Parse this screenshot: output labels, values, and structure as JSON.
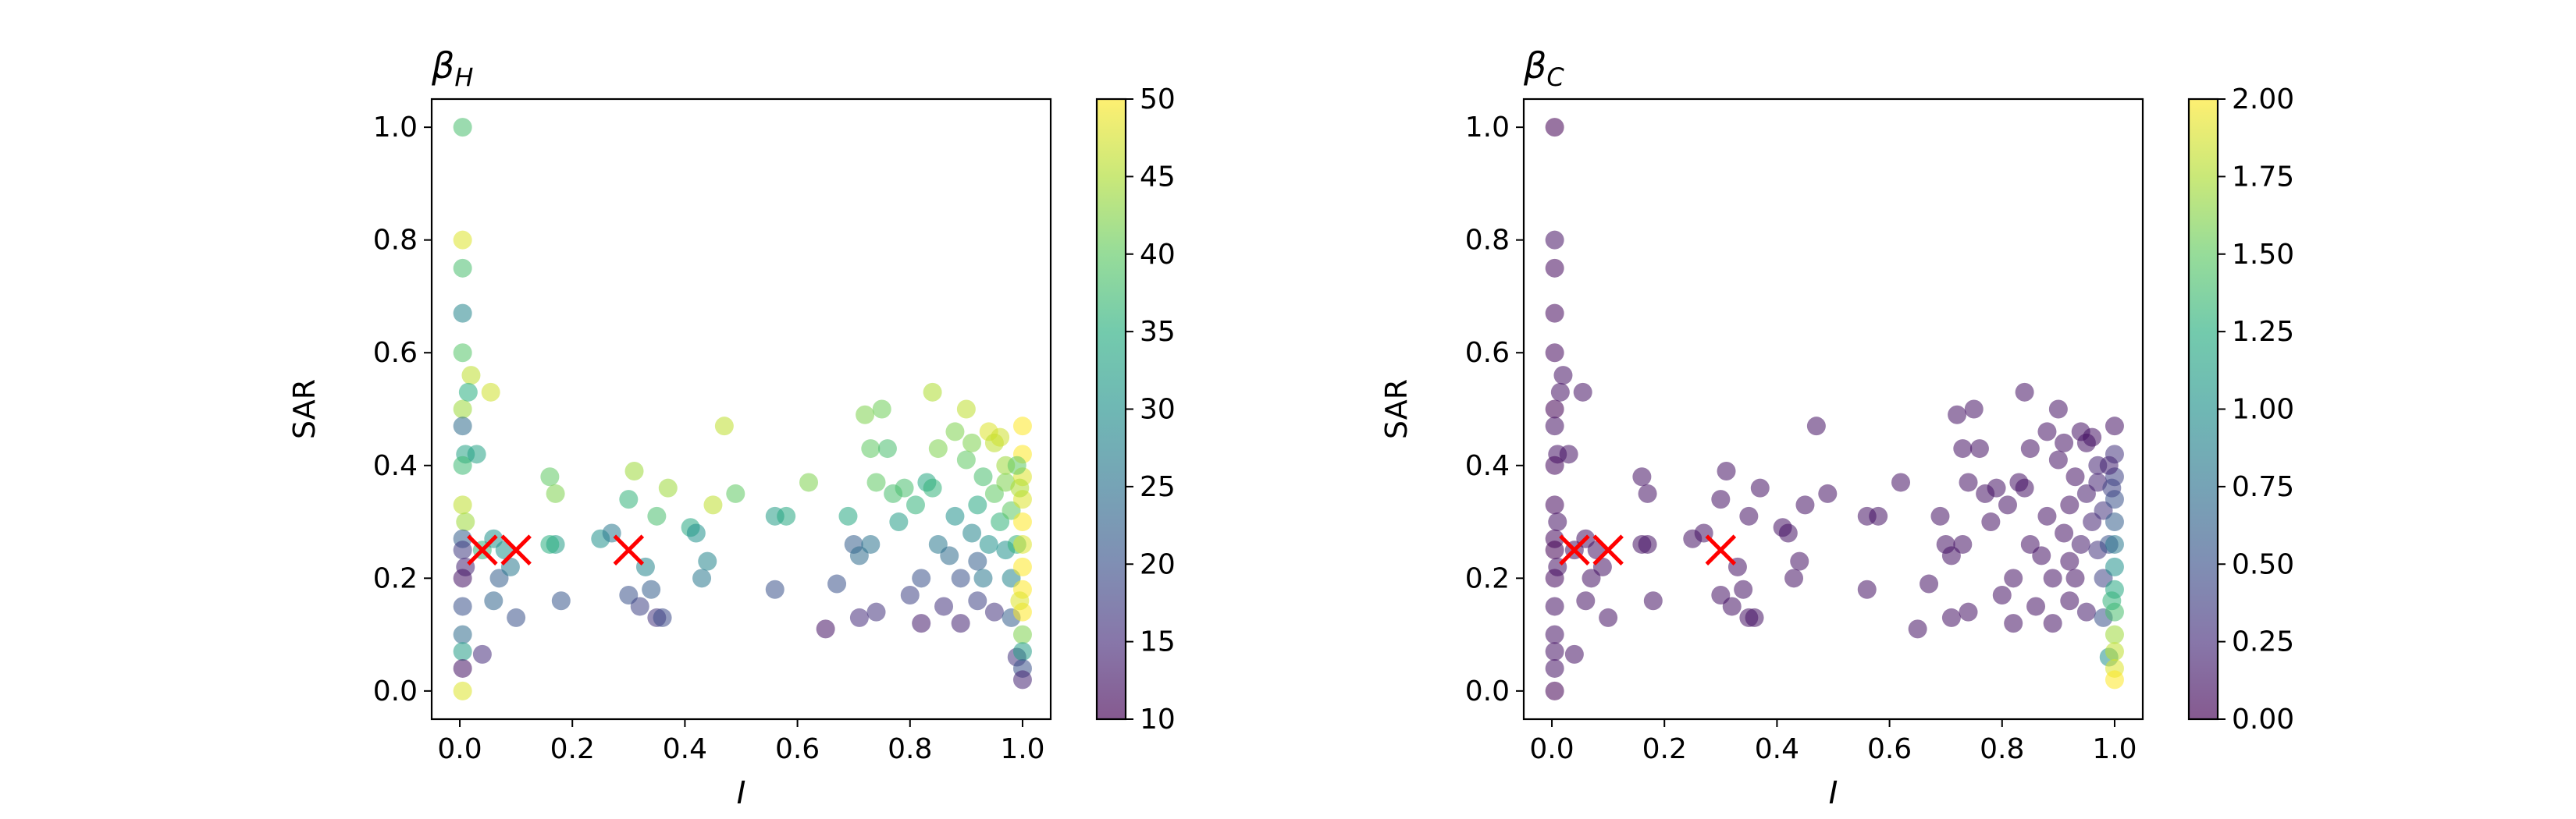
{
  "chart_data": [
    {
      "type": "scatter",
      "title": "β_H",
      "title_main": "β",
      "title_sub": "H",
      "xlabel": "I",
      "ylabel": "SAR",
      "xlim": [
        -0.05,
        1.05
      ],
      "ylim": [
        -0.05,
        1.05
      ],
      "xticks": [
        "0.0",
        "0.2",
        "0.4",
        "0.6",
        "0.8",
        "1.0"
      ],
      "yticks": [
        "0.0",
        "0.2",
        "0.4",
        "0.6",
        "0.8",
        "1.0"
      ],
      "colormap": "viridis",
      "colorbar": {
        "min": 10,
        "max": 50,
        "ticks": [
          "10",
          "15",
          "20",
          "25",
          "30",
          "35",
          "40",
          "45",
          "50"
        ]
      },
      "points": [
        [
          0.005,
          1.0,
          38
        ],
        [
          0.005,
          0.8,
          48
        ],
        [
          0.005,
          0.75,
          38
        ],
        [
          0.005,
          0.67,
          28
        ],
        [
          0.005,
          0.6,
          39
        ],
        [
          0.005,
          0.5,
          44
        ],
        [
          0.005,
          0.47,
          24
        ],
        [
          0.01,
          0.42,
          33
        ],
        [
          0.005,
          0.4,
          37
        ],
        [
          0.005,
          0.33,
          46
        ],
        [
          0.01,
          0.3,
          44
        ],
        [
          0.005,
          0.27,
          22
        ],
        [
          0.005,
          0.25,
          17
        ],
        [
          0.01,
          0.22,
          14
        ],
        [
          0.005,
          0.2,
          12
        ],
        [
          0.005,
          0.15,
          20
        ],
        [
          0.005,
          0.1,
          24
        ],
        [
          0.005,
          0.07,
          32
        ],
        [
          0.005,
          0.04,
          12
        ],
        [
          0.005,
          0.0,
          48
        ],
        [
          0.02,
          0.56,
          46
        ],
        [
          0.015,
          0.53,
          35
        ],
        [
          0.03,
          0.42,
          33
        ],
        [
          0.055,
          0.53,
          47
        ],
        [
          0.04,
          0.25,
          36
        ],
        [
          0.06,
          0.27,
          30
        ],
        [
          0.07,
          0.2,
          22
        ],
        [
          0.09,
          0.22,
          26
        ],
        [
          0.1,
          0.13,
          20
        ],
        [
          0.08,
          0.25,
          30
        ],
        [
          0.04,
          0.065,
          15
        ],
        [
          0.06,
          0.16,
          23
        ],
        [
          0.16,
          0.38,
          40
        ],
        [
          0.17,
          0.35,
          42
        ],
        [
          0.17,
          0.26,
          32
        ],
        [
          0.18,
          0.16,
          21
        ],
        [
          0.16,
          0.26,
          35
        ],
        [
          0.25,
          0.27,
          30
        ],
        [
          0.27,
          0.28,
          26
        ],
        [
          0.31,
          0.39,
          44
        ],
        [
          0.3,
          0.34,
          36
        ],
        [
          0.35,
          0.31,
          38
        ],
        [
          0.37,
          0.36,
          44
        ],
        [
          0.3,
          0.17,
          20
        ],
        [
          0.32,
          0.15,
          18
        ],
        [
          0.33,
          0.22,
          28
        ],
        [
          0.34,
          0.18,
          22
        ],
        [
          0.35,
          0.13,
          16
        ],
        [
          0.36,
          0.13,
          19
        ],
        [
          0.41,
          0.29,
          34
        ],
        [
          0.42,
          0.28,
          30
        ],
        [
          0.44,
          0.23,
          28
        ],
        [
          0.43,
          0.2,
          26
        ],
        [
          0.45,
          0.33,
          46
        ],
        [
          0.47,
          0.47,
          46
        ],
        [
          0.49,
          0.35,
          40
        ],
        [
          0.56,
          0.31,
          32
        ],
        [
          0.58,
          0.31,
          34
        ],
        [
          0.56,
          0.18,
          20
        ],
        [
          0.62,
          0.37,
          42
        ],
        [
          0.65,
          0.11,
          12
        ],
        [
          0.67,
          0.19,
          20
        ],
        [
          0.69,
          0.31,
          34
        ],
        [
          0.7,
          0.26,
          22
        ],
        [
          0.71,
          0.24,
          24
        ],
        [
          0.72,
          0.49,
          42
        ],
        [
          0.73,
          0.43,
          40
        ],
        [
          0.73,
          0.26,
          25
        ],
        [
          0.74,
          0.37,
          40
        ],
        [
          0.75,
          0.5,
          41
        ],
        [
          0.71,
          0.13,
          15
        ],
        [
          0.74,
          0.14,
          16
        ],
        [
          0.76,
          0.43,
          38
        ],
        [
          0.77,
          0.35,
          38
        ],
        [
          0.78,
          0.3,
          32
        ],
        [
          0.79,
          0.36,
          38
        ],
        [
          0.8,
          0.17,
          18
        ],
        [
          0.81,
          0.33,
          36
        ],
        [
          0.82,
          0.2,
          20
        ],
        [
          0.82,
          0.12,
          13
        ],
        [
          0.83,
          0.37,
          34
        ],
        [
          0.84,
          0.53,
          45
        ],
        [
          0.85,
          0.43,
          42
        ],
        [
          0.84,
          0.36,
          36
        ],
        [
          0.85,
          0.26,
          26
        ],
        [
          0.86,
          0.15,
          16
        ],
        [
          0.87,
          0.24,
          24
        ],
        [
          0.88,
          0.46,
          42
        ],
        [
          0.88,
          0.31,
          30
        ],
        [
          0.89,
          0.2,
          20
        ],
        [
          0.89,
          0.12,
          14
        ],
        [
          0.9,
          0.5,
          46
        ],
        [
          0.9,
          0.41,
          40
        ],
        [
          0.91,
          0.44,
          42
        ],
        [
          0.91,
          0.28,
          28
        ],
        [
          0.92,
          0.23,
          22
        ],
        [
          0.92,
          0.16,
          18
        ],
        [
          0.92,
          0.33,
          34
        ],
        [
          0.93,
          0.2,
          26
        ],
        [
          0.93,
          0.38,
          38
        ],
        [
          0.94,
          0.46,
          48
        ],
        [
          0.94,
          0.26,
          30
        ],
        [
          0.95,
          0.44,
          46
        ],
        [
          0.95,
          0.35,
          40
        ],
        [
          0.95,
          0.14,
          16
        ],
        [
          0.96,
          0.3,
          36
        ],
        [
          0.96,
          0.45,
          47
        ],
        [
          0.97,
          0.4,
          44
        ],
        [
          0.97,
          0.37,
          42
        ],
        [
          0.97,
          0.25,
          30
        ],
        [
          0.98,
          0.32,
          40
        ],
        [
          0.98,
          0.2,
          28
        ],
        [
          0.98,
          0.13,
          22
        ],
        [
          0.99,
          0.26,
          36
        ],
        [
          0.99,
          0.06,
          16
        ],
        [
          1.0,
          0.47,
          50
        ],
        [
          1.0,
          0.42,
          50
        ],
        [
          1.0,
          0.38,
          48
        ],
        [
          1.0,
          0.34,
          48
        ],
        [
          1.0,
          0.3,
          50
        ],
        [
          1.0,
          0.26,
          48
        ],
        [
          1.0,
          0.22,
          50
        ],
        [
          1.0,
          0.18,
          50
        ],
        [
          1.0,
          0.14,
          50
        ],
        [
          1.0,
          0.1,
          42
        ],
        [
          1.0,
          0.07,
          32
        ],
        [
          1.0,
          0.04,
          20
        ],
        [
          1.0,
          0.02,
          14
        ],
        [
          0.995,
          0.36,
          45
        ],
        [
          0.995,
          0.16,
          48
        ],
        [
          0.99,
          0.4,
          40
        ]
      ],
      "markers": [
        [
          0.04,
          0.25
        ],
        [
          0.1,
          0.25
        ],
        [
          0.3,
          0.25
        ]
      ]
    },
    {
      "type": "scatter",
      "title": "β_C",
      "title_main": "β",
      "title_sub": "C",
      "xlabel": "I",
      "ylabel": "SAR",
      "xlim": [
        -0.05,
        1.05
      ],
      "ylim": [
        -0.05,
        1.05
      ],
      "xticks": [
        "0.0",
        "0.2",
        "0.4",
        "0.6",
        "0.8",
        "1.0"
      ],
      "yticks": [
        "0.0",
        "0.2",
        "0.4",
        "0.6",
        "0.8",
        "1.0"
      ],
      "colormap": "viridis",
      "colorbar": {
        "min": 0,
        "max": 2,
        "ticks": [
          "0.00",
          "0.25",
          "0.50",
          "0.75",
          "1.00",
          "1.25",
          "1.50",
          "1.75",
          "2.00"
        ]
      },
      "points": [
        [
          0.005,
          1.0,
          0.0
        ],
        [
          0.005,
          0.8,
          0.1
        ],
        [
          0.005,
          0.75,
          0.05
        ],
        [
          0.005,
          0.67,
          0.05
        ],
        [
          0.005,
          0.6,
          0.05
        ],
        [
          0.005,
          0.5,
          0.0
        ],
        [
          0.005,
          0.47,
          0.1
        ],
        [
          0.01,
          0.42,
          0.1
        ],
        [
          0.005,
          0.4,
          0.05
        ],
        [
          0.005,
          0.33,
          0.05
        ],
        [
          0.01,
          0.3,
          0.1
        ],
        [
          0.005,
          0.27,
          0.05
        ],
        [
          0.005,
          0.25,
          0.0
        ],
        [
          0.01,
          0.22,
          0.1
        ],
        [
          0.005,
          0.2,
          0.05
        ],
        [
          0.005,
          0.15,
          0.1
        ],
        [
          0.005,
          0.1,
          0.1
        ],
        [
          0.005,
          0.07,
          0.1
        ],
        [
          0.005,
          0.04,
          0.1
        ],
        [
          0.005,
          0.0,
          0.0
        ],
        [
          0.02,
          0.56,
          0.1
        ],
        [
          0.015,
          0.53,
          0.1
        ],
        [
          0.03,
          0.42,
          0.1
        ],
        [
          0.055,
          0.53,
          0.1
        ],
        [
          0.04,
          0.25,
          0.1
        ],
        [
          0.06,
          0.27,
          0.1
        ],
        [
          0.07,
          0.2,
          0.1
        ],
        [
          0.09,
          0.22,
          0.1
        ],
        [
          0.1,
          0.13,
          0.1
        ],
        [
          0.08,
          0.25,
          0.1
        ],
        [
          0.04,
          0.065,
          0.1
        ],
        [
          0.06,
          0.16,
          0.1
        ],
        [
          0.16,
          0.38,
          0.1
        ],
        [
          0.17,
          0.35,
          0.1
        ],
        [
          0.17,
          0.26,
          0.1
        ],
        [
          0.18,
          0.16,
          0.1
        ],
        [
          0.16,
          0.26,
          0.1
        ],
        [
          0.25,
          0.27,
          0.1
        ],
        [
          0.27,
          0.28,
          0.1
        ],
        [
          0.31,
          0.39,
          0.1
        ],
        [
          0.3,
          0.34,
          0.1
        ],
        [
          0.35,
          0.31,
          0.1
        ],
        [
          0.37,
          0.36,
          0.1
        ],
        [
          0.3,
          0.17,
          0.1
        ],
        [
          0.32,
          0.15,
          0.1
        ],
        [
          0.33,
          0.22,
          0.1
        ],
        [
          0.34,
          0.18,
          0.1
        ],
        [
          0.35,
          0.13,
          0.1
        ],
        [
          0.36,
          0.13,
          0.1
        ],
        [
          0.41,
          0.29,
          0.1
        ],
        [
          0.42,
          0.28,
          0.1
        ],
        [
          0.44,
          0.23,
          0.1
        ],
        [
          0.43,
          0.2,
          0.1
        ],
        [
          0.45,
          0.33,
          0.1
        ],
        [
          0.47,
          0.47,
          0.1
        ],
        [
          0.49,
          0.35,
          0.1
        ],
        [
          0.56,
          0.31,
          0.1
        ],
        [
          0.58,
          0.31,
          0.1
        ],
        [
          0.56,
          0.18,
          0.1
        ],
        [
          0.62,
          0.37,
          0.1
        ],
        [
          0.65,
          0.11,
          0.1
        ],
        [
          0.67,
          0.19,
          0.1
        ],
        [
          0.69,
          0.31,
          0.1
        ],
        [
          0.7,
          0.26,
          0.1
        ],
        [
          0.71,
          0.24,
          0.1
        ],
        [
          0.72,
          0.49,
          0.1
        ],
        [
          0.73,
          0.43,
          0.1
        ],
        [
          0.73,
          0.26,
          0.1
        ],
        [
          0.74,
          0.37,
          0.1
        ],
        [
          0.75,
          0.5,
          0.1
        ],
        [
          0.71,
          0.13,
          0.1
        ],
        [
          0.74,
          0.14,
          0.1
        ],
        [
          0.76,
          0.43,
          0.1
        ],
        [
          0.77,
          0.35,
          0.1
        ],
        [
          0.78,
          0.3,
          0.1
        ],
        [
          0.79,
          0.36,
          0.1
        ],
        [
          0.8,
          0.17,
          0.1
        ],
        [
          0.81,
          0.33,
          0.1
        ],
        [
          0.82,
          0.2,
          0.1
        ],
        [
          0.82,
          0.12,
          0.1
        ],
        [
          0.83,
          0.37,
          0.1
        ],
        [
          0.84,
          0.53,
          0.1
        ],
        [
          0.85,
          0.43,
          0.1
        ],
        [
          0.84,
          0.36,
          0.1
        ],
        [
          0.85,
          0.26,
          0.1
        ],
        [
          0.86,
          0.15,
          0.1
        ],
        [
          0.87,
          0.24,
          0.1
        ],
        [
          0.88,
          0.46,
          0.1
        ],
        [
          0.88,
          0.31,
          0.1
        ],
        [
          0.89,
          0.2,
          0.1
        ],
        [
          0.89,
          0.12,
          0.1
        ],
        [
          0.9,
          0.5,
          0.1
        ],
        [
          0.9,
          0.41,
          0.1
        ],
        [
          0.91,
          0.44,
          0.1
        ],
        [
          0.91,
          0.28,
          0.1
        ],
        [
          0.92,
          0.23,
          0.1
        ],
        [
          0.92,
          0.16,
          0.1
        ],
        [
          0.92,
          0.33,
          0.1
        ],
        [
          0.93,
          0.2,
          0.1
        ],
        [
          0.93,
          0.38,
          0.1
        ],
        [
          0.94,
          0.46,
          0.1
        ],
        [
          0.94,
          0.26,
          0.15
        ],
        [
          0.95,
          0.44,
          0.1
        ],
        [
          0.95,
          0.35,
          0.15
        ],
        [
          0.95,
          0.14,
          0.15
        ],
        [
          0.96,
          0.3,
          0.2
        ],
        [
          0.96,
          0.45,
          0.1
        ],
        [
          0.97,
          0.4,
          0.2
        ],
        [
          0.97,
          0.37,
          0.2
        ],
        [
          0.97,
          0.25,
          0.3
        ],
        [
          0.98,
          0.32,
          0.3
        ],
        [
          0.98,
          0.2,
          0.4
        ],
        [
          0.98,
          0.13,
          0.5
        ],
        [
          0.99,
          0.26,
          0.5
        ],
        [
          0.99,
          0.06,
          1.0
        ],
        [
          1.0,
          0.47,
          0.1
        ],
        [
          1.0,
          0.42,
          0.3
        ],
        [
          1.0,
          0.38,
          0.4
        ],
        [
          1.0,
          0.34,
          0.5
        ],
        [
          1.0,
          0.3,
          0.6
        ],
        [
          1.0,
          0.26,
          0.8
        ],
        [
          1.0,
          0.22,
          1.0
        ],
        [
          1.0,
          0.18,
          1.2
        ],
        [
          1.0,
          0.14,
          1.4
        ],
        [
          1.0,
          0.1,
          1.7
        ],
        [
          1.0,
          0.07,
          1.8
        ],
        [
          1.0,
          0.04,
          1.9
        ],
        [
          1.0,
          0.02,
          2.0
        ],
        [
          0.995,
          0.36,
          0.4
        ],
        [
          0.995,
          0.16,
          1.3
        ],
        [
          0.99,
          0.4,
          0.2
        ]
      ],
      "markers": [
        [
          0.04,
          0.25
        ],
        [
          0.1,
          0.25
        ],
        [
          0.3,
          0.25
        ]
      ]
    }
  ],
  "colors": {
    "marker": "#ff0000",
    "axis": "#000000",
    "background": "#ffffff"
  }
}
